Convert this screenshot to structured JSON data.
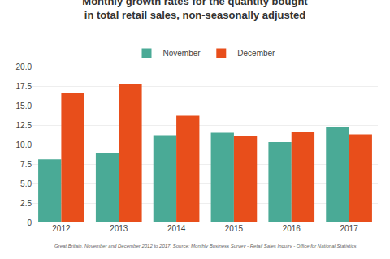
{
  "chart_data": {
    "type": "bar",
    "title": "Monthly growth rates for the quantity bought",
    "subtitle": "in total retail sales, non-seasonally adjusted",
    "categories": [
      "2012",
      "2013",
      "2014",
      "2015",
      "2016",
      "2017"
    ],
    "series": [
      {
        "name": "November",
        "color": "#4aaa96",
        "values": [
          8.1,
          8.9,
          11.2,
          11.5,
          10.3,
          12.2
        ]
      },
      {
        "name": "December",
        "color": "#e84e1b",
        "values": [
          16.6,
          17.7,
          13.7,
          11.1,
          11.6,
          11.3
        ]
      }
    ],
    "ylim": [
      0,
      20.0
    ],
    "yticks": [
      0,
      2.5,
      {
        "value": 5,
        "label": "5.0"
      },
      7.5,
      {
        "value": 10,
        "label": "10.0"
      },
      12.5,
      {
        "value": 15,
        "label": "15.0"
      },
      17.5,
      {
        "value": 20,
        "label": "20.0"
      }
    ],
    "grid": true,
    "legend": "top",
    "annotations": [
      "Great Britain, November and December 2012 to 2017. Source: Monthly Business Survey - Retail Sales Inquiry - Office for National Statistics"
    ]
  }
}
